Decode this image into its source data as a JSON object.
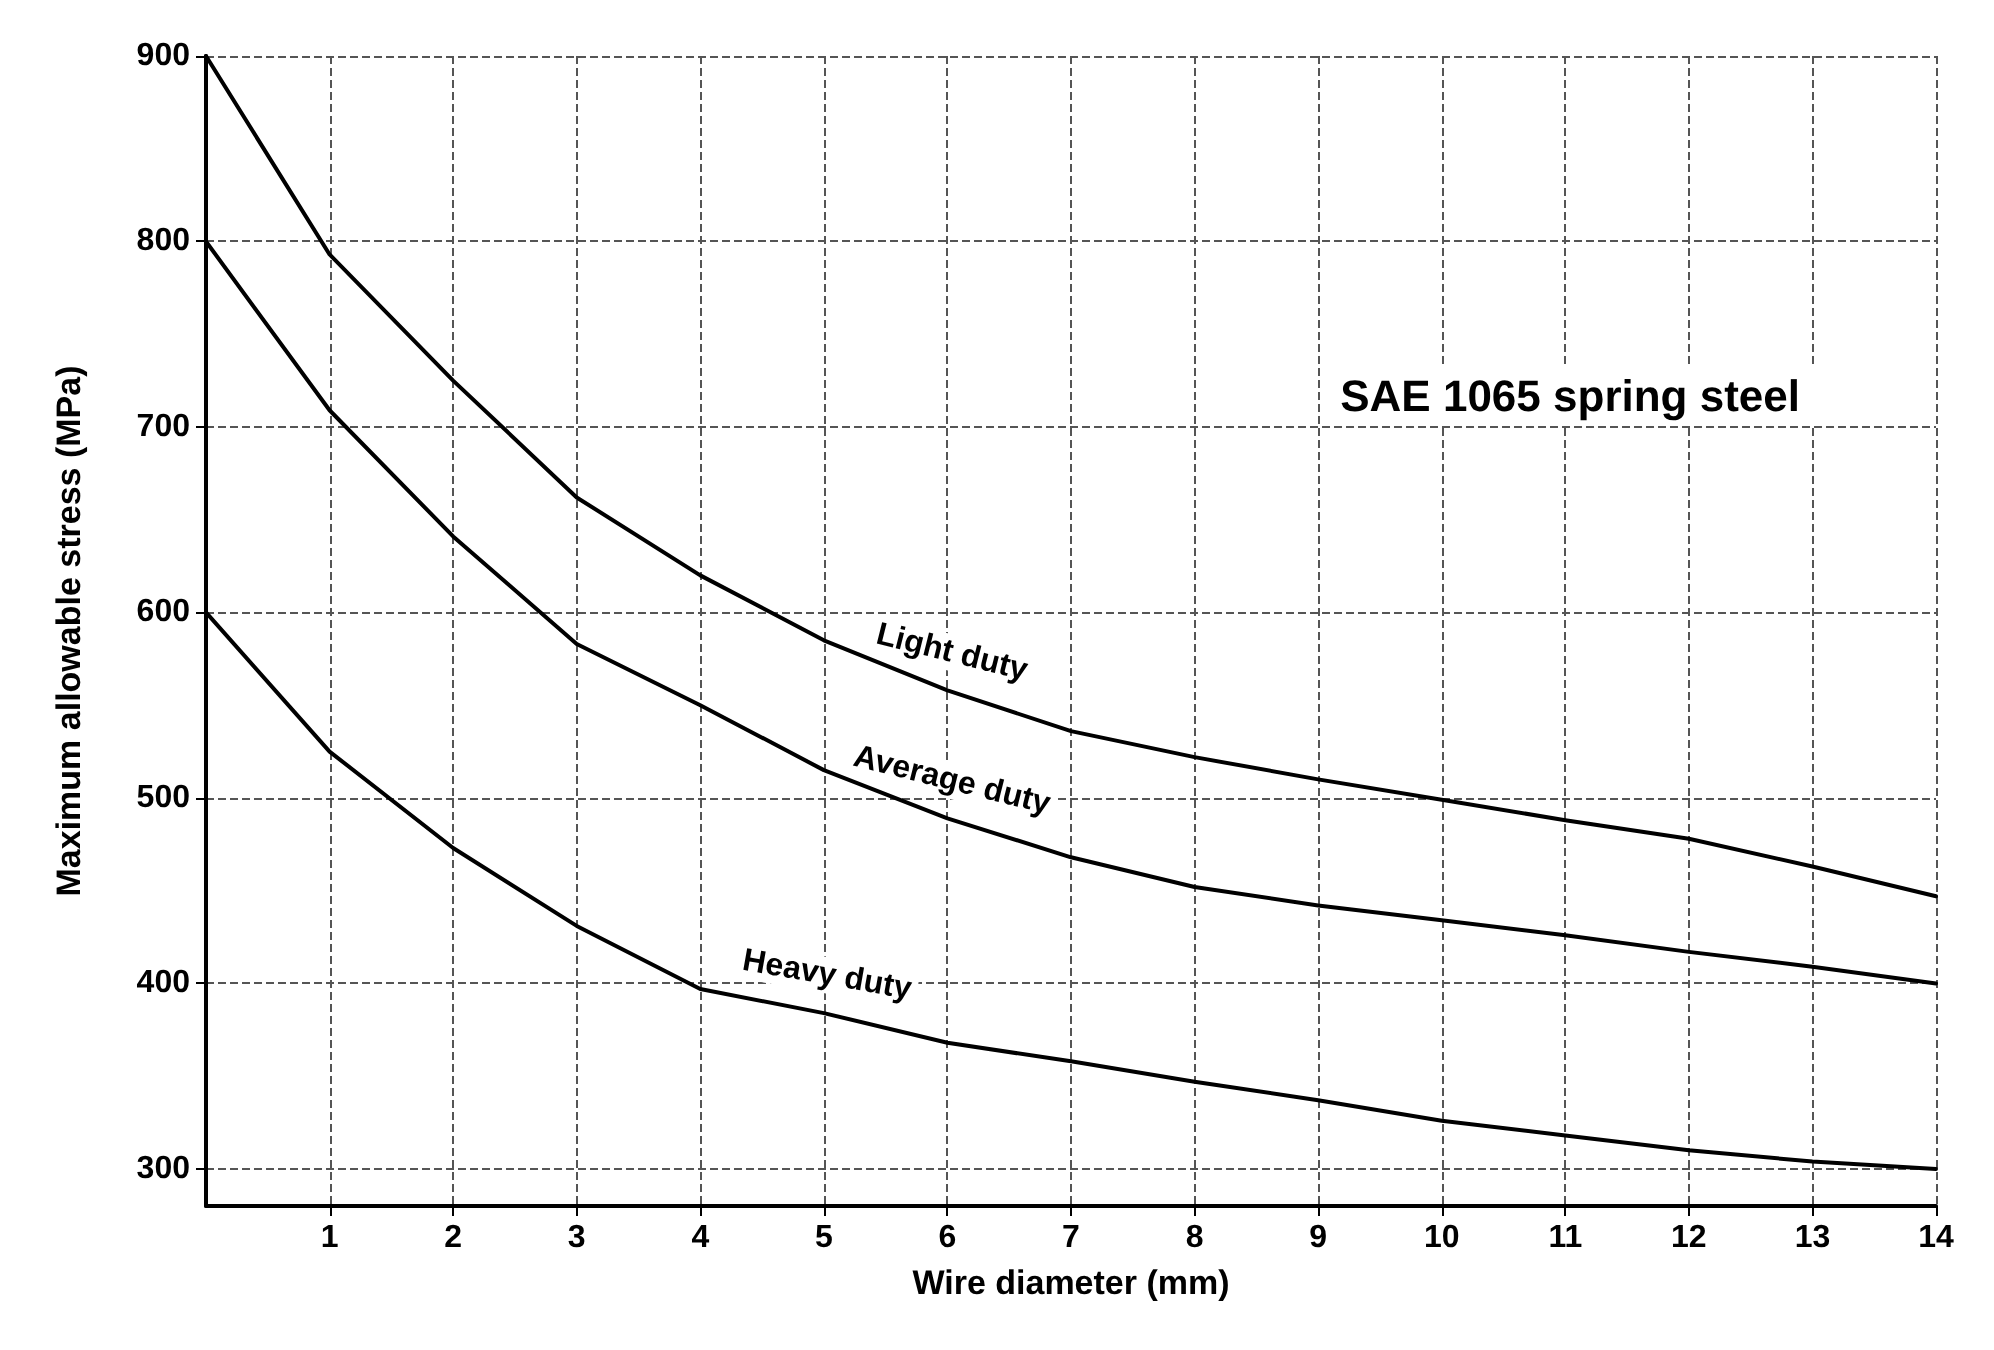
{
  "chart_data": {
    "type": "line",
    "title": "SAE 1065 spring steel",
    "xlabel": "Wire diameter (mm)",
    "ylabel": "Maximum allowable stress (MPa)",
    "x": [
      0,
      1,
      2,
      3,
      4,
      5,
      6,
      7,
      8,
      9,
      10,
      11,
      12,
      13,
      14
    ],
    "series": [
      {
        "name": "Light duty",
        "color": "#000000",
        "values": [
          900,
          793,
          725,
          662,
          620,
          585,
          558,
          536,
          522,
          510,
          499,
          488,
          478,
          463,
          447
        ]
      },
      {
        "name": "Average duty",
        "color": "#000000",
        "values": [
          800,
          709,
          641,
          583,
          550,
          515,
          489,
          468,
          452,
          442,
          434,
          426,
          417,
          409,
          400
        ]
      },
      {
        "name": "Heavy duty",
        "color": "#000000",
        "values": [
          600,
          525,
          473,
          431,
          397,
          384,
          368,
          358,
          347,
          337,
          326,
          318,
          310,
          304,
          300
        ]
      }
    ],
    "xlim": [
      0,
      14
    ],
    "xticks": [
      1,
      2,
      3,
      4,
      5,
      6,
      7,
      8,
      9,
      10,
      11,
      12,
      13,
      14
    ],
    "ylim": [
      280,
      900
    ],
    "yticks": [
      300,
      400,
      500,
      600,
      700,
      800,
      900
    ],
    "grid": true,
    "marker": "none",
    "line_style": "solid"
  }
}
